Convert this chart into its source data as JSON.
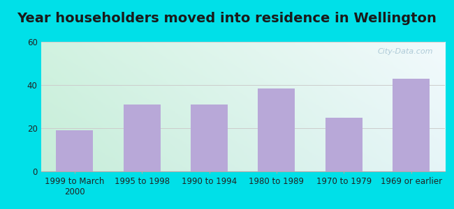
{
  "title": "Year householders moved into residence in Wellington",
  "categories": [
    "1999 to March\n2000",
    "1995 to 1998",
    "1990 to 1994",
    "1980 to 1989",
    "1970 to 1979",
    "1969 or earlier"
  ],
  "values": [
    19,
    31,
    31,
    38.5,
    25,
    43
  ],
  "bar_color": "#b8a8d8",
  "ylim": [
    0,
    60
  ],
  "yticks": [
    0,
    20,
    40,
    60
  ],
  "background_outer": "#00e0e8",
  "title_fontsize": 14,
  "tick_fontsize": 8.5,
  "watermark": "City-Data.com",
  "gradient_topleft": "#c8f0e0",
  "gradient_topright": "#f0f8fc",
  "gradient_bottomleft": "#c0ecd8",
  "gradient_bottomright": "#e8f4f8"
}
